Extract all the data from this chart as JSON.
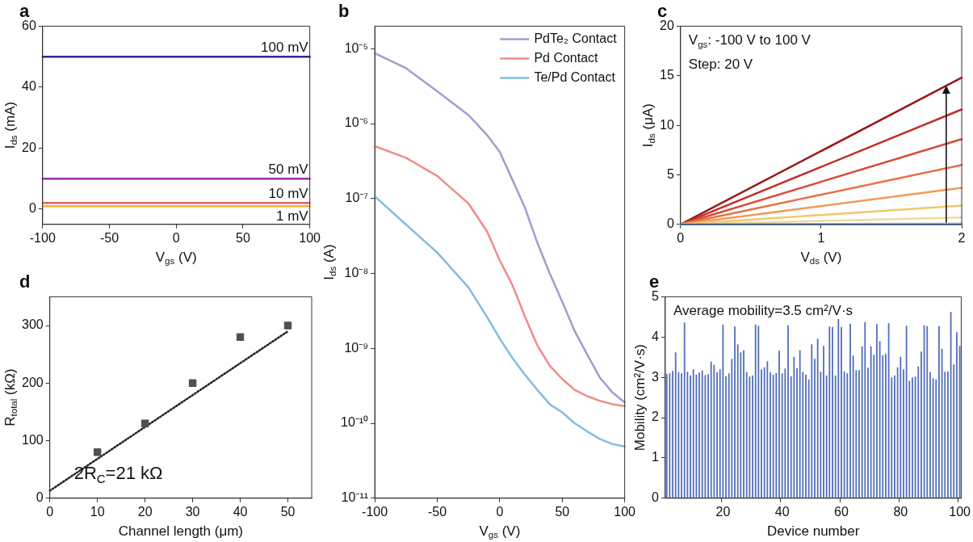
{
  "chart_data": [
    {
      "type": "line",
      "title": "a",
      "xlabel": "V$_{gs}$ (V)",
      "ylabel": "I$_{ds}$ (mA)",
      "x": [
        -100,
        100
      ],
      "series": [
        {
          "name": "100 mV",
          "color": "#3b2390",
          "values": [
            50,
            50
          ]
        },
        {
          "name": "50 mV",
          "color": "#9b2f9e",
          "values": [
            10,
            10
          ]
        },
        {
          "name": "10 mV",
          "color": "#e0626a",
          "values": [
            2,
            2
          ]
        },
        {
          "name": "1 mV",
          "color": "#f2b233",
          "values": [
            1,
            1
          ]
        }
      ],
      "xlim": [
        -100,
        100
      ],
      "xticks": [
        -100,
        -50,
        0,
        50,
        100
      ],
      "ylim": [
        -5,
        60
      ],
      "yticks": [
        0,
        20,
        40,
        60
      ]
    },
    {
      "type": "line",
      "title": "b",
      "xlabel": "V$_{gs}$ (V)",
      "ylabel": "I$_{ds}$ (A)",
      "x": [
        -100,
        -75,
        -50,
        -25,
        -10,
        0,
        10,
        20,
        30,
        40,
        50,
        60,
        70,
        80,
        90,
        100
      ],
      "series": [
        {
          "name": "PdTe₂ Contact",
          "color": "#a899cc",
          "values": [
            8.7e-06,
            5.5e-06,
            2.7e-06,
            1.3e-06,
            7e-07,
            4.2e-07,
            1.8e-07,
            7.7e-08,
            2.6e-08,
            1e-08,
            4.2e-09,
            1.7e-09,
            8.3e-10,
            4.1e-10,
            2.6e-10,
            1.9e-10
          ]
        },
        {
          "name": "Pd Contact",
          "color": "#f08a8a",
          "values": [
            5e-07,
            3.5e-07,
            2e-07,
            8.6e-08,
            3.6e-08,
            1.5e-08,
            7.1e-09,
            2.7e-09,
            1.1e-09,
            5.9e-10,
            3.9e-10,
            2.8e-10,
            2.3e-10,
            2e-10,
            1.8e-10,
            1.7e-10
          ]
        },
        {
          "name": "Te/Pd Contact",
          "color": "#80bde0",
          "values": [
            1.07e-07,
            4.5e-08,
            1.9e-08,
            6.5e-09,
            2.6e-09,
            1.35e-09,
            7.5e-10,
            4.5e-10,
            2.8e-10,
            1.8e-10,
            1.4e-10,
            1e-10,
            7.8e-11,
            6.2e-11,
            5.3e-11,
            4.9e-11
          ]
        }
      ],
      "xlim": [
        -100,
        100
      ],
      "xticks": [
        -100,
        -50,
        0,
        50,
        100
      ],
      "log": "y",
      "ylim": [
        1e-11,
        2e-05
      ],
      "yticks": [
        {
          "value": 1e-11,
          "label": "10⁻¹¹"
        },
        {
          "value": 1e-10,
          "label": "10⁻¹⁰"
        },
        {
          "value": 1e-09,
          "label": "10⁻⁹"
        },
        {
          "value": 1e-08,
          "label": "10⁻⁸"
        },
        {
          "value": 1e-07,
          "label": "10⁻⁷"
        },
        {
          "value": 1e-06,
          "label": "10⁻⁶"
        },
        {
          "value": 1e-05,
          "label": "10⁻⁵"
        }
      ],
      "legend": "top right"
    },
    {
      "type": "line",
      "title": "c",
      "xlabel": "V$_{ds}$ (V)",
      "ylabel": "I$_{ds}$ (μA)",
      "x": [
        0,
        2
      ],
      "annotations": [
        "V$_{gs}$: -100 V to 100 V",
        "Step: 20 V"
      ],
      "series": [
        {
          "color": "#5b9bd5",
          "values": [
            0,
            0
          ]
        },
        {
          "color": "#d6dccb",
          "values": [
            0,
            0.1
          ]
        },
        {
          "color": "#ecdca0",
          "values": [
            0,
            0.7
          ]
        },
        {
          "color": "#f3c868",
          "values": [
            0,
            1.9
          ]
        },
        {
          "color": "#f29a58",
          "values": [
            0,
            3.7
          ]
        },
        {
          "color": "#e87048",
          "values": [
            0,
            6.0
          ]
        },
        {
          "color": "#d84a34",
          "values": [
            0,
            8.6
          ]
        },
        {
          "color": "#c0302a",
          "values": [
            0,
            11.6
          ]
        },
        {
          "color": "#961a1a",
          "values": [
            0,
            14.8
          ]
        }
      ],
      "xlim": [
        0,
        2
      ],
      "xticks": [
        0,
        1,
        2
      ],
      "ylim": [
        0,
        20
      ],
      "yticks": [
        0,
        5,
        10,
        15,
        20
      ]
    },
    {
      "type": "scatter",
      "title": "d",
      "xlabel": "Channel length (μm)",
      "ylabel": "R$_{total}$ (kΩ)",
      "marker": "square",
      "annotations": [
        "2R$_{C}$=21 kΩ"
      ],
      "series": [
        {
          "color": "#505050",
          "x": [
            10,
            20,
            30,
            40,
            50
          ],
          "values": [
            80,
            130,
            200,
            280,
            300
          ]
        },
        {
          "type": "line",
          "color": "#222222",
          "line_style": "dotted",
          "marker": "none",
          "x": [
            0,
            50
          ],
          "values": [
            13,
            290
          ]
        }
      ],
      "xlim": [
        0,
        55
      ],
      "xticks": [
        0,
        10,
        20,
        30,
        40,
        50
      ],
      "ylim": [
        0,
        350
      ],
      "yticks": [
        0,
        100,
        200,
        300
      ]
    },
    {
      "type": "bar",
      "title": "e",
      "xlabel": "Device number",
      "ylabel": "Mobility (cm²/V·s)",
      "color": "#5470b8",
      "annotations": [
        "Average mobility=3.5 cm²/V·s"
      ],
      "categories": [
        null,
        null,
        null,
        null,
        null,
        null,
        null,
        null,
        null,
        null,
        null,
        null,
        null,
        null,
        null,
        null,
        null,
        null,
        null,
        "20",
        null,
        null,
        null,
        null,
        null,
        null,
        null,
        null,
        null,
        null,
        null,
        null,
        null,
        null,
        null,
        null,
        null,
        null,
        null,
        "40",
        null,
        null,
        null,
        null,
        null,
        null,
        null,
        null,
        null,
        null,
        null,
        null,
        null,
        null,
        null,
        null,
        null,
        null,
        null,
        "60",
        null,
        null,
        null,
        null,
        null,
        null,
        null,
        null,
        null,
        null,
        null,
        null,
        null,
        null,
        null,
        null,
        null,
        null,
        null,
        "80",
        null,
        null,
        null,
        null,
        null,
        null,
        null,
        null,
        null,
        null,
        null,
        null,
        null,
        null,
        null,
        null,
        null,
        null,
        null,
        "100"
      ],
      "values": [
        3.09,
        3.1,
        3.16,
        3.62,
        3.13,
        3.1,
        4.36,
        3.14,
        3.05,
        3.2,
        3.07,
        3.12,
        3.17,
        3.06,
        3.08,
        3.39,
        3.31,
        3.13,
        3.2,
        4.31,
        3.03,
        3.1,
        3.46,
        4.26,
        3.82,
        3.62,
        3.67,
        3.13,
        3.02,
        3.05,
        4.31,
        4.28,
        3.2,
        3.25,
        3.4,
        3.13,
        3.07,
        3.11,
        3.66,
        3.1,
        3.22,
        4.29,
        3.03,
        3.51,
        3.23,
        3.67,
        3.14,
        3.07,
        2.95,
        3.82,
        3.46,
        3.96,
        3.14,
        3.78,
        3.05,
        4.26,
        4.25,
        3.05,
        4.45,
        4.25,
        3.15,
        3.1,
        4.33,
        3.54,
        3.18,
        3.18,
        3.77,
        4.37,
        3.24,
        3.77,
        3.56,
        4.32,
        3.9,
        3.55,
        3.58,
        4.34,
        3.0,
        3.05,
        3.25,
        3.51,
        3.2,
        4.28,
        2.92,
        3.0,
        3.02,
        3.27,
        3.64,
        4.29,
        4.27,
        3.13,
        2.98,
        2.95,
        4.27,
        3.71,
        3.14,
        3.15,
        4.62,
        3.32,
        4.12,
        3.78
      ],
      "ylim": [
        0,
        5
      ],
      "yticks": [
        0,
        1,
        2,
        3,
        4,
        5
      ]
    }
  ]
}
